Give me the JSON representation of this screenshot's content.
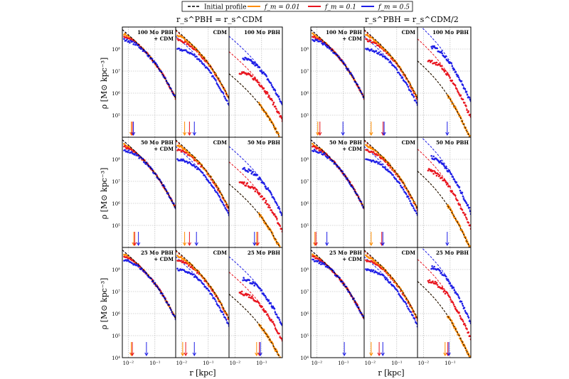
{
  "chart_data": {
    "type": "scatter",
    "legend": {
      "placement": "top",
      "entries": [
        {
          "label": "Initial profile",
          "color": "#000000",
          "style": "dashed"
        },
        {
          "label": "f_m = 0.01",
          "color": "#ff8c00",
          "style": "solid"
        },
        {
          "label": "f_m = 0.1",
          "color": "#e8141e",
          "style": "solid"
        },
        {
          "label": "f_m = 0.5",
          "color": "#1e1ee6",
          "style": "solid"
        }
      ]
    },
    "group_titles": [
      "r_s^PBH = r_s^CDM",
      "r_s^PBH = r_s^CDM/2"
    ],
    "title_color": "#ff2020",
    "xlabel": "r [kpc]",
    "ylabel": "ρ [M⊙ kpc⁻³]",
    "xscale": "log",
    "yscale": "log",
    "xlim": [
      0.006,
      0.6
    ],
    "ylim": [
      10000,
      1000000000
    ],
    "x_ticks": [
      "10⁻²",
      "10⁻¹"
    ],
    "y_ticks": [
      "10⁴",
      "10⁵",
      "10⁶",
      "10⁷",
      "10⁸"
    ],
    "grid": true,
    "colors": {
      "init": "#000000",
      "f001": "#ff8c00",
      "f01": "#e8141e",
      "f05": "#1e1ee6"
    },
    "panel_labels": {
      "100": [
        "100 M⊙ PBH",
        "+ CDM",
        "CDM",
        "100 M⊙ PBH"
      ],
      "50": [
        "50 M⊙ PBH",
        "+ CDM",
        "CDM",
        "50 M⊙ PBH"
      ],
      "25": [
        "25 M⊙ PBH",
        "+ CDM",
        "CDM",
        "25 M⊙ PBH"
      ]
    },
    "rows": [
      {
        "mass": "100",
        "rs_ratio": 1,
        "arrows": {
          "pbh_cdm": [
            0.013,
            0.013,
            0.013
          ],
          "cdm": [
            0.013,
            0.018,
            0.025
          ],
          "pbh": [
            null,
            null,
            null
          ]
        }
      },
      {
        "mass": "50",
        "rs_ratio": 1,
        "arrows": {
          "pbh_cdm": [
            0.016,
            0.016,
            0.02
          ],
          "cdm": [
            0.013,
            0.018,
            0.03
          ],
          "pbh": [
            0.065,
            0.065,
            0.045
          ]
        }
      },
      {
        "mass": "25",
        "rs_ratio": 1,
        "arrows": {
          "pbh_cdm": [
            0.013,
            0.013,
            0.04
          ],
          "cdm": [
            0.011,
            0.013,
            0.025
          ],
          "pbh": [
            0.065,
            0.075,
            0.075
          ]
        }
      },
      {
        "mass": "100",
        "rs_ratio": 0.5,
        "arrows": {
          "pbh_cdm": [
            0.011,
            0.012,
            0.08
          ],
          "cdm": [
            0.011,
            0.028,
            0.028
          ],
          "pbh": [
            null,
            null,
            0.065
          ]
        }
      },
      {
        "mass": "50",
        "rs_ratio": 0.5,
        "arrows": {
          "pbh_cdm": [
            0.0085,
            0.0085,
            0.02
          ],
          "cdm": [
            0.011,
            0.025,
            0.025
          ],
          "pbh": [
            null,
            null,
            0.065
          ]
        }
      },
      {
        "mass": "25",
        "rs_ratio": 0.5,
        "arrows": {
          "pbh_cdm": [
            null,
            null,
            0.09
          ],
          "cdm": [
            0.011,
            0.02,
            0.025
          ],
          "pbh": [
            0.065,
            0.075,
            0.075
          ]
        }
      }
    ]
  }
}
